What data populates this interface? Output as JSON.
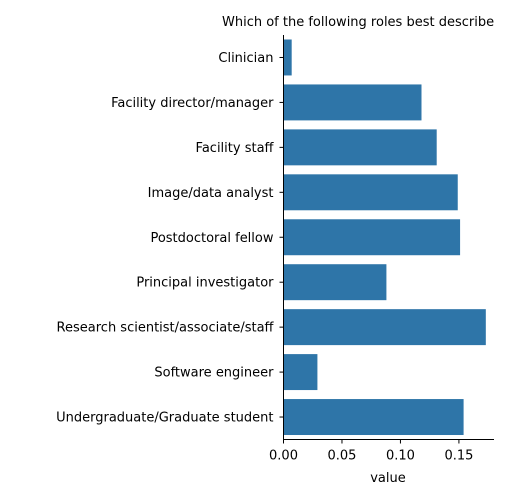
{
  "chart_data": {
    "type": "bar",
    "orientation": "horizontal",
    "title": "Which of the following roles best describe",
    "xlabel": "value",
    "ylabel": "",
    "categories": [
      "Clinician",
      "Facility director/manager",
      "Facility staff",
      "Image/data analyst",
      "Postdoctoral fellow",
      "Principal investigator",
      "Research scientist/associate/staff",
      "Software engineer",
      "Undergraduate/Graduate student"
    ],
    "values": [
      0.007,
      0.118,
      0.131,
      0.149,
      0.151,
      0.088,
      0.173,
      0.029,
      0.154
    ],
    "xlim": [
      0,
      0.18
    ],
    "xticks": [
      0.0,
      0.05,
      0.1,
      0.15
    ],
    "xtick_labels": [
      "0.00",
      "0.05",
      "0.10",
      "0.15"
    ],
    "bar_color": "#2e75a8",
    "grid": false,
    "legend": "none"
  }
}
